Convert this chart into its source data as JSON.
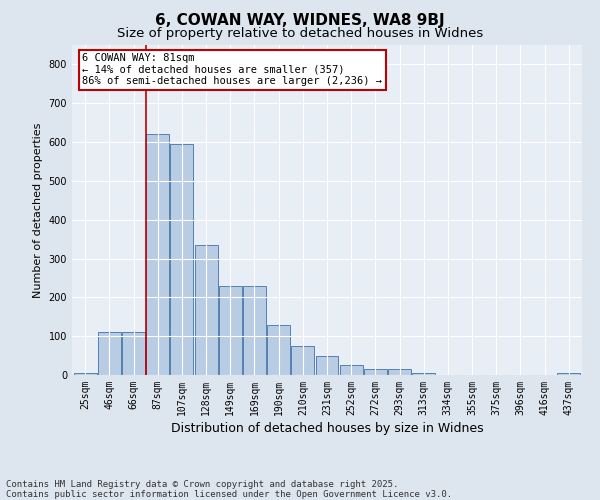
{
  "title": "6, COWAN WAY, WIDNES, WA8 9BJ",
  "subtitle": "Size of property relative to detached houses in Widnes",
  "xlabel": "Distribution of detached houses by size in Widnes",
  "ylabel": "Number of detached properties",
  "categories": [
    "25sqm",
    "46sqm",
    "66sqm",
    "87sqm",
    "107sqm",
    "128sqm",
    "149sqm",
    "169sqm",
    "190sqm",
    "210sqm",
    "231sqm",
    "252sqm",
    "272sqm",
    "293sqm",
    "313sqm",
    "334sqm",
    "355sqm",
    "375sqm",
    "396sqm",
    "416sqm",
    "437sqm"
  ],
  "values": [
    5,
    110,
    110,
    620,
    595,
    335,
    230,
    230,
    130,
    75,
    50,
    25,
    15,
    15,
    5,
    0,
    0,
    0,
    0,
    0,
    5
  ],
  "bar_color": "#b8cce4",
  "bar_edge_color": "#5580b0",
  "vline_color": "#c00000",
  "vline_pos": 2.5,
  "annotation_text": "6 COWAN WAY: 81sqm\n← 14% of detached houses are smaller (357)\n86% of semi-detached houses are larger (2,236) →",
  "annotation_box_color": "#ffffff",
  "annotation_box_edge": "#c00000",
  "ylim": [
    0,
    850
  ],
  "yticks": [
    0,
    100,
    200,
    300,
    400,
    500,
    600,
    700,
    800
  ],
  "bg_color": "#dde5ef",
  "plot_bg_color": "#e8eef6",
  "grid_color": "#ffffff",
  "footer": "Contains HM Land Registry data © Crown copyright and database right 2025.\nContains public sector information licensed under the Open Government Licence v3.0.",
  "title_fontsize": 11,
  "subtitle_fontsize": 9.5,
  "xlabel_fontsize": 9,
  "ylabel_fontsize": 8,
  "tick_fontsize": 7,
  "footer_fontsize": 6.5,
  "ann_fontsize": 7.5
}
